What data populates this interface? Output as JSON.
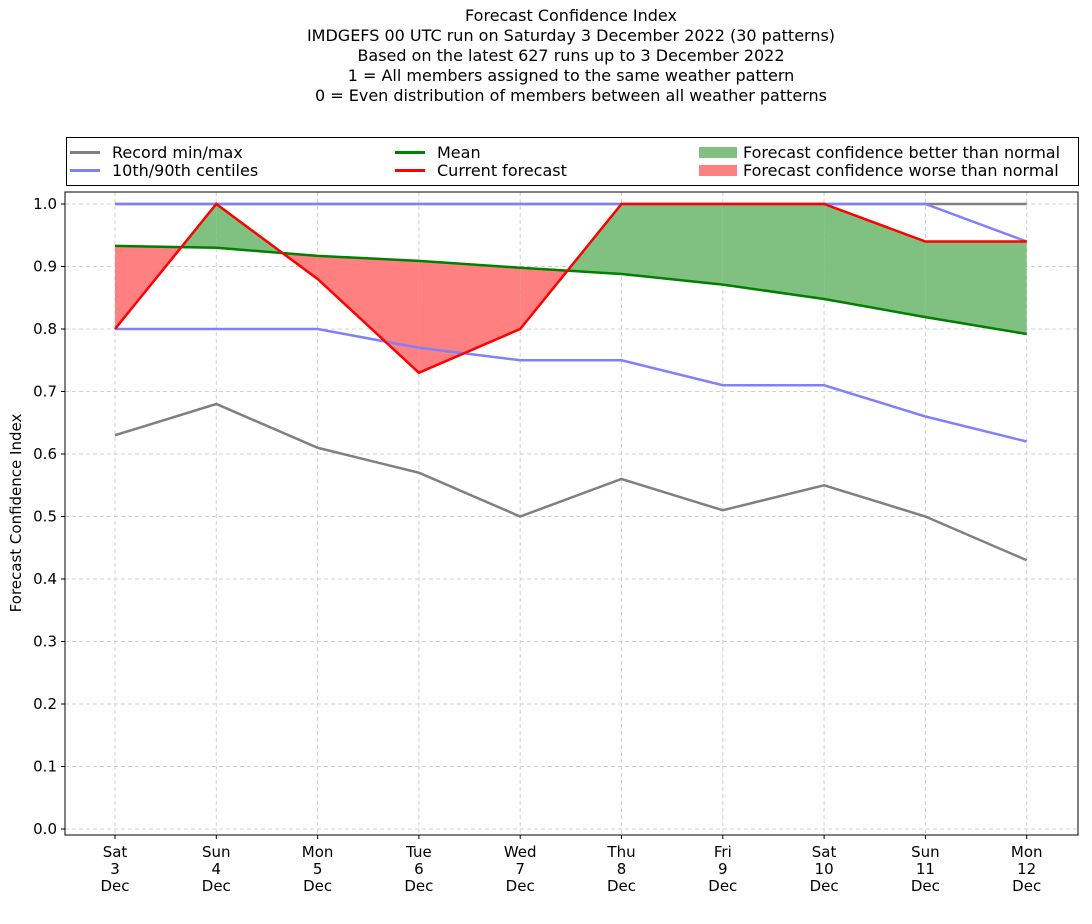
{
  "chart_data": {
    "type": "line",
    "title_lines": [
      "Forecast Confidence Index",
      "IMDGEFS 00 UTC run on Saturday 3 December 2022 (30 patterns)",
      "Based on the latest 627 runs up to 3 December 2022",
      "1 = All members assigned to the same weather pattern",
      "0 = Even distribution of members between all weather patterns"
    ],
    "xlabel": "",
    "ylabel": "Forecast Confidence Index",
    "ylim": [
      -0.01,
      1.01
    ],
    "yticks": [
      "0.0",
      "0.1",
      "0.2",
      "0.3",
      "0.4",
      "0.5",
      "0.6",
      "0.7",
      "0.8",
      "0.9",
      "1.0"
    ],
    "ytick_values": [
      0,
      0.1,
      0.2,
      0.3,
      0.4,
      0.5,
      0.6,
      0.7,
      0.8,
      0.9,
      1.0
    ],
    "categories": [
      {
        "day": "Sat",
        "date": "3",
        "month": "Dec"
      },
      {
        "day": "Sun",
        "date": "4",
        "month": "Dec"
      },
      {
        "day": "Mon",
        "date": "5",
        "month": "Dec"
      },
      {
        "day": "Tue",
        "date": "6",
        "month": "Dec"
      },
      {
        "day": "Wed",
        "date": "7",
        "month": "Dec"
      },
      {
        "day": "Thu",
        "date": "8",
        "month": "Dec"
      },
      {
        "day": "Fri",
        "date": "9",
        "month": "Dec"
      },
      {
        "day": "Sat",
        "date": "10",
        "month": "Dec"
      },
      {
        "day": "Sun",
        "date": "11",
        "month": "Dec"
      },
      {
        "day": "Mon",
        "date": "12",
        "month": "Dec"
      }
    ],
    "grid": true,
    "legend_position": "top",
    "series": [
      {
        "name": "Record min",
        "legend": "Record min/max",
        "color": "#808080",
        "values": [
          0.63,
          0.68,
          0.61,
          0.57,
          0.5,
          0.56,
          0.51,
          0.55,
          0.5,
          0.43
        ]
      },
      {
        "name": "Record max",
        "color": "#808080",
        "values": [
          1.0,
          1.0,
          1.0,
          1.0,
          1.0,
          1.0,
          1.0,
          1.0,
          1.0,
          1.0
        ]
      },
      {
        "name": "10th centile",
        "legend": "10th/90th centiles",
        "color": "#8080ff",
        "values": [
          0.8,
          0.8,
          0.8,
          0.77,
          0.75,
          0.75,
          0.71,
          0.71,
          0.66,
          0.62
        ]
      },
      {
        "name": "90th centile",
        "color": "#8080ff",
        "values": [
          1.0,
          1.0,
          1.0,
          1.0,
          1.0,
          1.0,
          1.0,
          1.0,
          1.0,
          0.94
        ]
      },
      {
        "name": "Mean",
        "legend": "Mean",
        "color": "#008000",
        "values": [
          0.933,
          0.93,
          0.917,
          0.909,
          0.898,
          0.888,
          0.871,
          0.848,
          0.819,
          0.792
        ]
      },
      {
        "name": "Current forecast",
        "legend": "Current forecast",
        "color": "#ff0000",
        "values": [
          0.8,
          1.0,
          0.88,
          0.73,
          0.8,
          1.0,
          1.0,
          1.0,
          0.94,
          0.94
        ]
      }
    ],
    "fills": [
      {
        "legend": "Forecast confidence better than normal",
        "color": "#80c080"
      },
      {
        "legend": "Forecast confidence worse than normal",
        "color": "#ff8080"
      }
    ]
  }
}
